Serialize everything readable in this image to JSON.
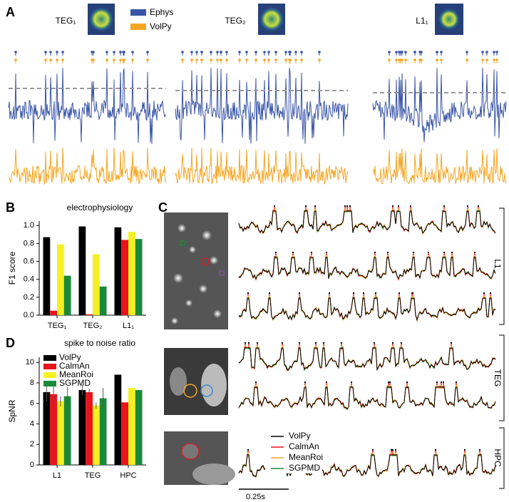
{
  "panel_labels": {
    "a": "A",
    "b": "B",
    "c": "C",
    "d": "D"
  },
  "panel_a": {
    "neurons": [
      "TEG₁",
      "TEG₂",
      "L1₁"
    ],
    "legend": [
      {
        "name": "Ephys",
        "color": "#3a55a8"
      },
      {
        "name": "VolPy",
        "color": "#f5a623"
      }
    ]
  },
  "panel_c": {
    "regions": [
      "L1",
      "TEG",
      "HPC"
    ],
    "legend": [
      {
        "name": "VolPy",
        "color": "#000000"
      },
      {
        "name": "CalmAn",
        "color": "#e8141c"
      },
      {
        "name": "MeanRoi",
        "color": "#f5a623"
      },
      {
        "name": "SGPMD",
        "color": "#1a8a3a"
      }
    ],
    "scale_bar": "0.25s"
  },
  "chart_data": [
    {
      "type": "bar",
      "title": "electrophysiology",
      "y_label": "F1 score",
      "categories": [
        "TEG₁",
        "TEG₂",
        "L1₁"
      ],
      "series": [
        {
          "color": "#000000",
          "values": [
            0.87,
            0.99,
            0.98
          ]
        },
        {
          "color": "#e8141c",
          "values": [
            0.05,
            0.01,
            0.84
          ]
        },
        {
          "color": "#f5f020",
          "values": [
            0.79,
            0.68,
            0.93
          ]
        },
        {
          "color": "#1a8a3a",
          "values": [
            0.44,
            0.32,
            0.85
          ]
        }
      ],
      "ylim": [
        0,
        1.05
      ],
      "yticks": [
        {
          "value": 0,
          "label": "0.0"
        },
        {
          "value": 0.2,
          "label": "0.2"
        },
        {
          "value": 0.4,
          "label": "0.4"
        },
        {
          "value": 0.6,
          "label": "0.6"
        },
        {
          "value": 0.8,
          "label": "0.8"
        },
        {
          "value": 1,
          "label": "1.0"
        }
      ]
    },
    {
      "type": "bar",
      "title": "spike to noise ratio",
      "y_label": "SpNR",
      "categories": [
        "L1",
        "TEG",
        "HPC"
      ],
      "series": [
        {
          "name": "VolPy",
          "color": "#000000",
          "values": [
            7.1,
            7.3,
            8.8
          ],
          "errors": [
            0.9,
            0.5,
            null
          ]
        },
        {
          "name": "CalmAn",
          "color": "#e8141c",
          "values": [
            6.9,
            7.1,
            6.1
          ],
          "errors": [
            0.9,
            0.3,
            null
          ]
        },
        {
          "name": "MeanRoi",
          "color": "#f5f020",
          "values": [
            6.2,
            5.8,
            7.5
          ],
          "errors": [
            0.5,
            0.3,
            null
          ]
        },
        {
          "name": "SGPMD",
          "color": "#1a8a3a",
          "values": [
            6.7,
            6.5,
            7.3
          ],
          "errors": [
            0.9,
            1.0,
            null
          ]
        }
      ],
      "ylim": [
        0,
        10.5
      ],
      "yticks": [
        0,
        2,
        4,
        6,
        8,
        10
      ],
      "legend": "upper left"
    }
  ]
}
